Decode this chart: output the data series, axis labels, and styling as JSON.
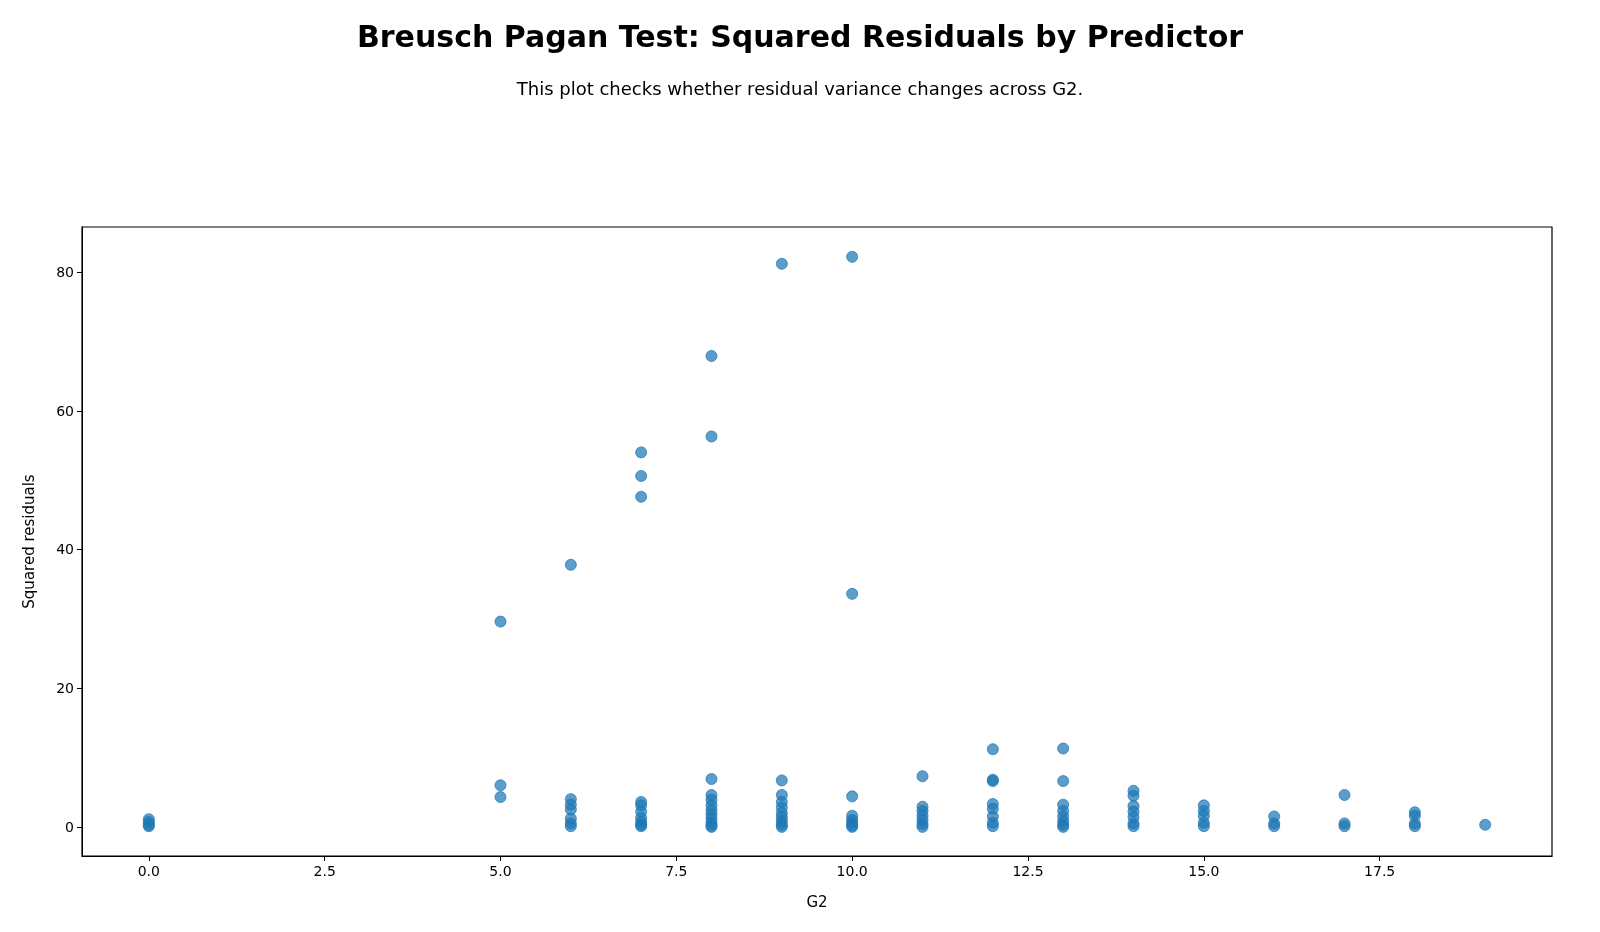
{
  "chart_data": {
    "type": "scatter",
    "title": "Breusch Pagan Test: Squared Residuals by Predictor",
    "subtitle": "This plot checks whether residual variance changes across G2.",
    "xlabel": "G2",
    "ylabel": "Squared residuals",
    "xlim": [
      -0.95,
      19.95
    ],
    "xticks": [
      {
        "value": 0,
        "label": "0.0"
      },
      {
        "value": 2.5,
        "label": "2.5"
      },
      {
        "value": 5,
        "label": "5.0"
      },
      {
        "value": 7.5,
        "label": "7.5"
      },
      {
        "value": 10,
        "label": "10.0"
      },
      {
        "value": 12.5,
        "label": "12.5"
      },
      {
        "value": 15,
        "label": "15.0"
      },
      {
        "value": 17.5,
        "label": "17.5"
      }
    ],
    "ylim": [
      -4.2,
      86.5
    ],
    "yticks": [
      0,
      20,
      40,
      60,
      80
    ],
    "grid": false,
    "marker": "circle",
    "series": [
      {
        "color": "#1f77b4",
        "x": [
          0,
          0,
          0,
          0,
          5,
          5,
          5,
          6,
          6,
          6,
          6,
          6,
          6,
          6,
          7,
          7,
          7,
          7,
          7,
          7,
          7,
          7,
          7,
          7,
          8,
          8,
          8,
          8,
          8,
          8,
          8,
          8,
          8,
          8,
          8,
          8,
          9,
          9,
          9,
          9,
          9,
          9,
          9,
          9,
          9,
          9,
          10,
          10,
          10,
          10,
          10,
          10,
          10,
          10,
          11,
          11,
          11,
          11,
          11,
          11,
          11,
          12,
          12,
          12,
          12,
          12,
          12,
          12,
          12,
          13,
          13,
          13,
          13,
          13,
          13,
          13,
          13,
          14,
          14,
          14,
          14,
          14,
          14,
          14,
          15,
          15,
          15,
          15,
          15,
          16,
          16,
          16,
          17,
          17,
          17,
          18,
          18,
          18,
          18,
          19
        ],
        "values": [
          1.1,
          0.7,
          0.3,
          0.1,
          29.6,
          6.0,
          4.3,
          37.8,
          4.0,
          3.2,
          2.5,
          1.2,
          0.5,
          0.1,
          54.0,
          50.6,
          47.6,
          3.6,
          3.1,
          2.2,
          1.3,
          0.7,
          0.3,
          0.1,
          67.9,
          56.3,
          6.9,
          4.6,
          3.9,
          3.1,
          2.4,
          1.8,
          1.2,
          0.6,
          0.2,
          0,
          81.2,
          6.7,
          4.6,
          3.6,
          2.8,
          2.0,
          1.4,
          0.8,
          0.3,
          0,
          82.2,
          33.6,
          4.4,
          1.6,
          1.0,
          0.6,
          0.2,
          0,
          7.3,
          2.9,
          2.3,
          1.6,
          1.0,
          0.4,
          0,
          11.2,
          6.8,
          6.6,
          3.3,
          2.6,
          1.5,
          0.6,
          0.1,
          11.3,
          6.6,
          3.2,
          2.3,
          1.5,
          0.8,
          0.3,
          0,
          5.2,
          4.5,
          3.0,
          2.2,
          1.4,
          0.5,
          0.1,
          3.1,
          2.3,
          1.6,
          0.6,
          0.1,
          1.5,
          0.5,
          0.1,
          4.6,
          0.5,
          0.1,
          2.1,
          1.6,
          0.5,
          0.1,
          0.3
        ]
      }
    ]
  }
}
